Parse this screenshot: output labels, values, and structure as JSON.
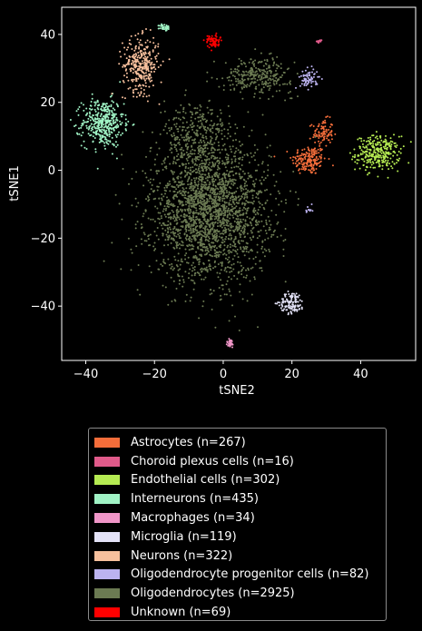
{
  "chart_data": {
    "type": "scatter",
    "title": "",
    "xlabel": "tSNE2",
    "ylabel": "tSNE1",
    "xlim": [
      -47,
      56
    ],
    "ylim": [
      -56,
      48
    ],
    "xticks": [
      -40,
      -20,
      0,
      20,
      40
    ],
    "yticks": [
      -40,
      -20,
      0,
      20,
      40
    ],
    "grid": false,
    "legend_position": "below",
    "series": [
      {
        "name": "Astrocytes (n=267)",
        "color": "#f46d3a",
        "n": 267,
        "clusters": [
          {
            "cx": 25,
            "cy": 3,
            "sx": 2.5,
            "sy": 2.2,
            "w": 0.65
          },
          {
            "cx": 29,
            "cy": 11,
            "sx": 1.5,
            "sy": 2,
            "w": 0.35
          }
        ]
      },
      {
        "name": "Choroid plexus cells (n=16)",
        "color": "#e05a8a",
        "n": 16,
        "clusters": [
          {
            "cx": 28,
            "cy": 38,
            "sx": 0.4,
            "sy": 0.3,
            "w": 1
          }
        ]
      },
      {
        "name": "Endothelial cells (n=302)",
        "color": "#b5eb52",
        "n": 302,
        "clusters": [
          {
            "cx": 45,
            "cy": 5,
            "sx": 3.2,
            "sy": 2.5,
            "w": 1
          }
        ]
      },
      {
        "name": "Interneurons (n=435)",
        "color": "#a0f3c5",
        "n": 435,
        "clusters": [
          {
            "cx": -35,
            "cy": 14,
            "sx": 3,
            "sy": 3.5,
            "w": 0.92
          },
          {
            "cx": -17,
            "cy": 42,
            "sx": 0.8,
            "sy": 0.5,
            "w": 0.08
          }
        ]
      },
      {
        "name": "Macrophages (n=34)",
        "color": "#f096c8",
        "n": 34,
        "clusters": [
          {
            "cx": 2,
            "cy": -51,
            "sx": 0.6,
            "sy": 0.7,
            "w": 1
          }
        ]
      },
      {
        "name": "Microglia (n=119)",
        "color": "#e3e2f7",
        "n": 119,
        "clusters": [
          {
            "cx": 20,
            "cy": -39,
            "sx": 1.8,
            "sy": 1.6,
            "w": 1
          }
        ]
      },
      {
        "name": "Neurons (n=322)",
        "color": "#f7c09d",
        "n": 322,
        "clusters": [
          {
            "cx": -24,
            "cy": 31,
            "sx": 2.6,
            "sy": 4,
            "w": 1
          }
        ]
      },
      {
        "name": "Oligodendrocyte progenitor cells (n=82)",
        "color": "#bcb3f0",
        "n": 82,
        "clusters": [
          {
            "cx": 25,
            "cy": 27,
            "sx": 1.3,
            "sy": 1.5,
            "w": 0.85
          },
          {
            "cx": 25,
            "cy": -12,
            "sx": 0.5,
            "sy": 0.8,
            "w": 0.15
          }
        ]
      },
      {
        "name": "Oligodendrocytes (n=2925)",
        "color": "#6b7a52",
        "n": 2925,
        "clusters": [
          {
            "cx": -4,
            "cy": -12,
            "sx": 8.5,
            "sy": 10,
            "w": 0.8
          },
          {
            "cx": -8,
            "cy": 10,
            "sx": 5,
            "sy": 5,
            "w": 0.1
          },
          {
            "cx": 10,
            "cy": 28,
            "sx": 5,
            "sy": 2.5,
            "w": 0.1
          }
        ]
      },
      {
        "name": "Unknown (n=69)",
        "color": "#ff0000",
        "n": 69,
        "clusters": [
          {
            "cx": -3,
            "cy": 38,
            "sx": 1,
            "sy": 1,
            "w": 1
          }
        ]
      }
    ]
  }
}
